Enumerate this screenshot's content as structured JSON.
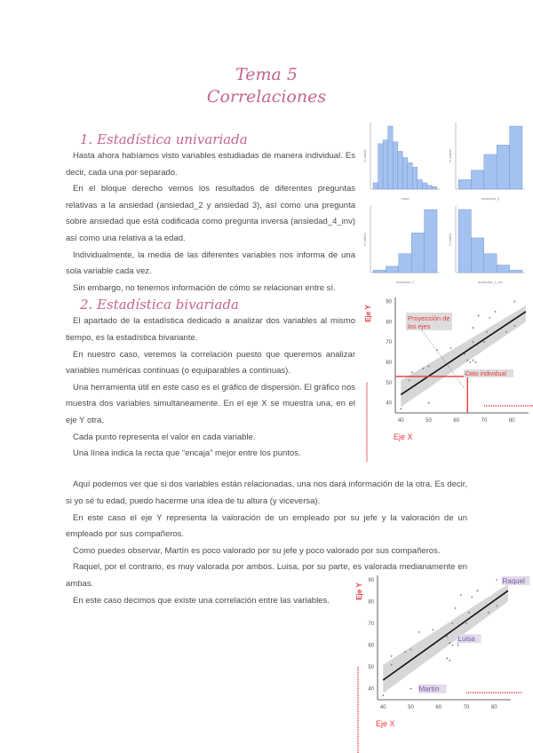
{
  "header": {
    "title": "Tema 5",
    "subtitle": "Correlaciones"
  },
  "section1": {
    "heading": "1.  Estadística univariada",
    "paragraphs": [
      "Hasta ahora habíamos visto variables estudiadas de manera individual. Es decir, cada una por separado.",
      "En el bloque derecho vemos los resultados de diferentes preguntas relativas a la ansiedad (ansiedad_2 y ansiedad 3), así como una pregunta sobre ansiedad que está codificada como pregunta inversa (ansiedad_4_inv) así como una relativa a la edad.",
      "Individualmente, la media de las diferentes variables nos informa de una sola variable cada vez.",
      "Sin embargo, no tenemos información de cómo se relacionan entre sí."
    ]
  },
  "section2": {
    "heading": "2.  Estadística bivariada",
    "paragraphs": [
      "El apartado de la estadística dedicado a analizar dos variables al mismo tiempo, es la estadística bivariante.",
      "En nuestro caso, veremos la correlación puesto que queremos analizar variables numéricas continuas (o equiparables a continuas).",
      "Una herramienta útil en este caso es el gráfico de dispersión. El gráfico nos muestra dos variables simultáneamente. En el eje X se muestra una, en el eje Y otra.",
      "Cada punto representa el valor en cada variable.",
      "Una línea indica la recta que “encaja” mejor entre los puntos."
    ]
  },
  "section3": {
    "paragraphs": [
      "Aquí podemos ver que si dos variables están relacionadas, una nos dará información de la otra. Es decir, si yo sé tu edad, puedo hacerme una idea de tu altura (y viceversa).",
      "En este caso el eje Y representa la valoración de un empleado por su jefe y la valoración de un empleado por sus compañeros.",
      "Como puedes observar, Martín es poco valorado por su jefe y poco valorado por sus compañeros.",
      "Raquel, por el contrario, es muy valorada por ambos. Luisa, por su parte, es valorada medianamente en ambas.",
      "En este caso decimos que existe una correlación entre las variables."
    ]
  },
  "histograms": [
    {
      "xlabel": "edad",
      "ylabel": "N válido",
      "values": [
        0.1,
        0.72,
        0.78,
        1.0,
        0.75,
        0.6,
        0.5,
        0.42,
        0.35,
        0.15,
        0.1,
        0.06,
        0.04
      ]
    },
    {
      "xlabel": "ansiedad_3",
      "ylabel": "N válido",
      "values": [
        0.15,
        0.3,
        0.55,
        0.7,
        1.0
      ]
    },
    {
      "xlabel": "ansiedad_2",
      "ylabel": "N válido",
      "values": [
        0.04,
        0.1,
        0.3,
        0.63,
        1.0
      ]
    },
    {
      "xlabel": "ansiedad_4_inv",
      "ylabel": "N válido",
      "values": [
        1.0,
        0.55,
        0.3,
        0.12,
        0.04
      ]
    }
  ],
  "colors": {
    "accent": "#c4648f",
    "bar": "#a4c2f0",
    "annotation": "#e8383d",
    "label": "#7b55a8"
  },
  "scatter1": {
    "x_ticks": [
      "40",
      "50",
      "60",
      "70",
      "80"
    ],
    "y_ticks": [
      "40",
      "50",
      "60",
      "70",
      "80",
      "90"
    ],
    "xlim": [
      38,
      86
    ],
    "ylim": [
      35,
      92
    ],
    "annotations": {
      "eje_y": "Eje Y",
      "eje_x": "Eje X",
      "proyeccion": "Proyección de los ejes",
      "dato": "Dato individual"
    },
    "points": [
      [
        40,
        37
      ],
      [
        43,
        51
      ],
      [
        44,
        55
      ],
      [
        48,
        57
      ],
      [
        50,
        58
      ],
      [
        50,
        40
      ],
      [
        53,
        66
      ],
      [
        58,
        67
      ],
      [
        63,
        54
      ],
      [
        64,
        53
      ],
      [
        63,
        64
      ],
      [
        64,
        61
      ],
      [
        65,
        60
      ],
      [
        66,
        61
      ],
      [
        67,
        60
      ],
      [
        66,
        70
      ],
      [
        66,
        77
      ],
      [
        68,
        83
      ],
      [
        70,
        70
      ],
      [
        71,
        75
      ],
      [
        72,
        82
      ],
      [
        74,
        85
      ],
      [
        78,
        75
      ],
      [
        81,
        78
      ],
      [
        81,
        90
      ]
    ]
  },
  "scatter2": {
    "x_ticks": [
      "40",
      "50",
      "60",
      "70",
      "80"
    ],
    "y_ticks": [
      "40",
      "50",
      "60",
      "70",
      "80",
      "90"
    ],
    "xlim": [
      38,
      86
    ],
    "ylim": [
      35,
      92
    ],
    "annotations": {
      "eje_y": "Eje Y",
      "eje_x": "Eje X"
    },
    "labels": {
      "raquel": "Raquel",
      "luisa": "Luisa",
      "martin": "Martín"
    },
    "points": [
      [
        40,
        37
      ],
      [
        43,
        51
      ],
      [
        43,
        55
      ],
      [
        48,
        57
      ],
      [
        50,
        58
      ],
      [
        50,
        40
      ],
      [
        53,
        66
      ],
      [
        58,
        67
      ],
      [
        63,
        54
      ],
      [
        64,
        53
      ],
      [
        63,
        64
      ],
      [
        64,
        61
      ],
      [
        65,
        60
      ],
      [
        67,
        61
      ],
      [
        67,
        60
      ],
      [
        65,
        70
      ],
      [
        66,
        77
      ],
      [
        68,
        83
      ],
      [
        70,
        70
      ],
      [
        71,
        75
      ],
      [
        72,
        82
      ],
      [
        74,
        85
      ],
      [
        78,
        75
      ],
      [
        81,
        78
      ],
      [
        81,
        90
      ]
    ]
  }
}
